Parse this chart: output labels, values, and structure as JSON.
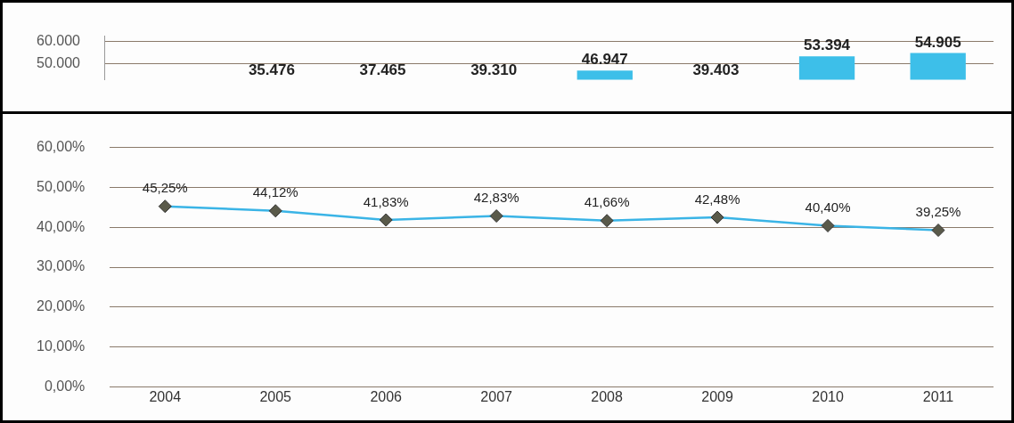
{
  "chart_data": [
    {
      "type": "bar",
      "categories": [
        "2004",
        "2005",
        "2006",
        "2007",
        "2008",
        "2009",
        "2010",
        "2011"
      ],
      "series": [
        {
          "color": "#3dbfe9",
          "values": [
            null,
            null,
            null,
            null,
            46947,
            null,
            53394,
            54905
          ],
          "value_labels": [
            null,
            "35.476",
            "37.465",
            "39.310",
            "46.947",
            "39.403",
            "53.394",
            "54.905"
          ]
        }
      ],
      "ylim": [
        42800,
        62500
      ],
      "yticks": [
        {
          "value": 50000,
          "label": "50.000"
        },
        {
          "value": 60000,
          "label": "60.000"
        }
      ],
      "grid": "y",
      "legend": false,
      "tick_labels": "y"
    },
    {
      "type": "line",
      "categories": [
        "2004",
        "2005",
        "2006",
        "2007",
        "2008",
        "2009",
        "2010",
        "2011"
      ],
      "series": [
        {
          "color": "#3ab4e6",
          "values": [
            45.25,
            44.12,
            41.83,
            42.83,
            41.66,
            42.48,
            40.4,
            39.25
          ],
          "value_labels": [
            "45,25%",
            "44,12%",
            "41,83%",
            "42,83%",
            "41,66%",
            "42,48%",
            "40,40%",
            "39,25%"
          ]
        }
      ],
      "ylim": [
        0,
        60
      ],
      "yticks": [
        {
          "value": 0,
          "label": "0,00%"
        },
        {
          "value": 10,
          "label": "10,00%"
        },
        {
          "value": 20,
          "label": "20,00%"
        },
        {
          "value": 30,
          "label": "30,00%"
        },
        {
          "value": 40,
          "label": "40,00%"
        },
        {
          "value": 50,
          "label": "50,00%"
        },
        {
          "value": 60,
          "label": "60,00%"
        }
      ],
      "grid": "y",
      "legend": false,
      "marker": "diamond",
      "line_style": "solid"
    }
  ]
}
